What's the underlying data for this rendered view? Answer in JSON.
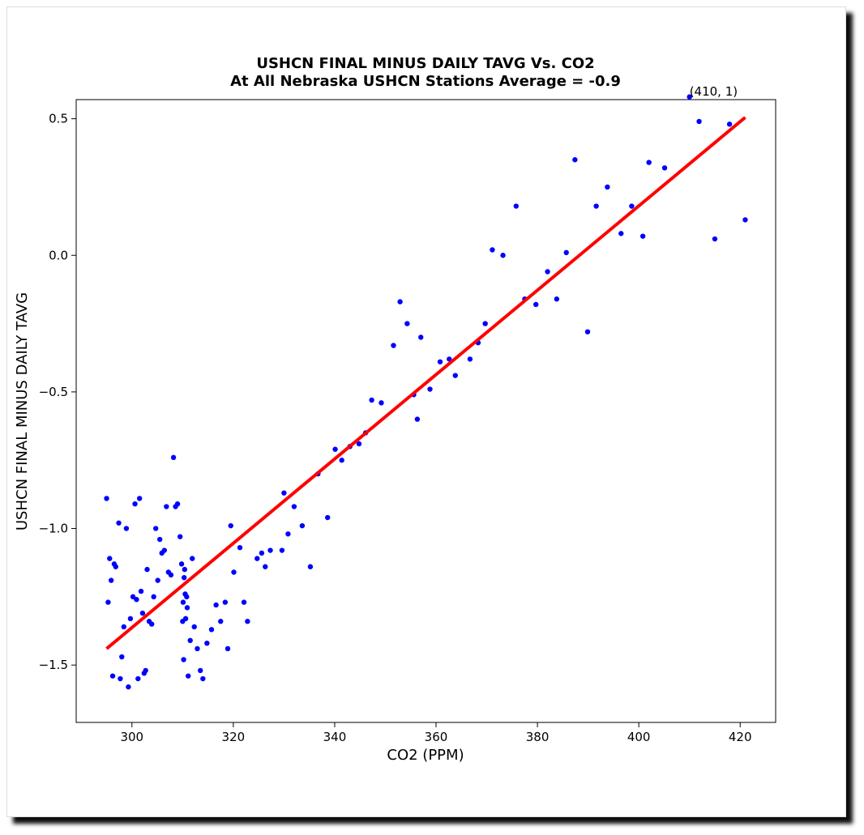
{
  "chart_data": {
    "type": "scatter",
    "title": "USHCN FINAL MINUS DAILY TAVG Vs. CO2",
    "subtitle": "At All Nebraska USHCN Stations Average = -0.9",
    "xlabel": "CO2 (PPM)",
    "ylabel": "USHCN FINAL MINUS DAILY TAVG",
    "xlim": [
      289,
      427
    ],
    "ylim": [
      -1.71,
      0.57
    ],
    "xticks": [
      300,
      320,
      340,
      360,
      380,
      400,
      420
    ],
    "xtick_labels": [
      "300",
      "320",
      "340",
      "360",
      "380",
      "400",
      "420"
    ],
    "yticks": [
      0.5,
      0.0,
      -0.5,
      -1.0,
      -1.5
    ],
    "ytick_labels": [
      "0.5",
      "0.0",
      "−0.5",
      "−1.0",
      "−1.5"
    ],
    "grid": false,
    "annotation": {
      "text": "(410, 1)",
      "x": 410,
      "y": 0.585
    },
    "trend_line": {
      "x": [
        295,
        421
      ],
      "y": [
        -1.44,
        0.505
      ],
      "color": "#ff0000"
    },
    "point_color": "#0000ff",
    "points": [
      [
        295.0,
        -0.89
      ],
      [
        295.3,
        -1.27
      ],
      [
        295.6,
        -1.11
      ],
      [
        295.9,
        -1.19
      ],
      [
        296.2,
        -1.54
      ],
      [
        296.5,
        -1.13
      ],
      [
        296.8,
        -1.14
      ],
      [
        297.4,
        -0.98
      ],
      [
        297.7,
        -1.55
      ],
      [
        298.0,
        -1.47
      ],
      [
        298.4,
        -1.36
      ],
      [
        298.9,
        -1.0
      ],
      [
        299.3,
        -1.58
      ],
      [
        299.7,
        -1.33
      ],
      [
        300.2,
        -1.25
      ],
      [
        300.6,
        -0.91
      ],
      [
        300.9,
        -1.26
      ],
      [
        301.2,
        -1.55
      ],
      [
        301.5,
        -0.89
      ],
      [
        301.8,
        -1.23
      ],
      [
        302.1,
        -1.31
      ],
      [
        302.4,
        -1.53
      ],
      [
        302.7,
        -1.52
      ],
      [
        303.0,
        -1.15
      ],
      [
        303.4,
        -1.34
      ],
      [
        303.9,
        -1.35
      ],
      [
        304.3,
        -1.25
      ],
      [
        304.7,
        -1.0
      ],
      [
        305.1,
        -1.19
      ],
      [
        305.5,
        -1.04
      ],
      [
        305.9,
        -1.09
      ],
      [
        306.4,
        -1.08
      ],
      [
        306.8,
        -0.92
      ],
      [
        307.2,
        -1.16
      ],
      [
        307.7,
        -1.17
      ],
      [
        308.2,
        -0.74
      ],
      [
        308.6,
        -0.92
      ],
      [
        309.0,
        -0.91
      ],
      [
        309.5,
        -1.03
      ],
      [
        309.8,
        -1.13
      ],
      [
        310.0,
        -1.34
      ],
      [
        310.1,
        -1.27
      ],
      [
        310.2,
        -1.48
      ],
      [
        310.3,
        -1.18
      ],
      [
        310.4,
        -1.15
      ],
      [
        310.5,
        -1.24
      ],
      [
        310.6,
        -1.33
      ],
      [
        310.8,
        -1.25
      ],
      [
        310.9,
        -1.29
      ],
      [
        311.1,
        -1.54
      ],
      [
        311.5,
        -1.41
      ],
      [
        311.9,
        -1.11
      ],
      [
        312.3,
        -1.36
      ],
      [
        312.9,
        -1.44
      ],
      [
        313.5,
        -1.52
      ],
      [
        314.0,
        -1.55
      ],
      [
        314.8,
        -1.42
      ],
      [
        315.7,
        -1.37
      ],
      [
        316.6,
        -1.28
      ],
      [
        317.5,
        -1.34
      ],
      [
        318.4,
        -1.27
      ],
      [
        318.9,
        -1.44
      ],
      [
        319.5,
        -0.99
      ],
      [
        320.1,
        -1.16
      ],
      [
        321.3,
        -1.07
      ],
      [
        322.1,
        -1.27
      ],
      [
        322.8,
        -1.34
      ],
      [
        324.7,
        -1.11
      ],
      [
        325.6,
        -1.09
      ],
      [
        326.3,
        -1.14
      ],
      [
        327.3,
        -1.08
      ],
      [
        329.6,
        -1.08
      ],
      [
        330.0,
        -0.87
      ],
      [
        330.8,
        -1.02
      ],
      [
        332.0,
        -0.92
      ],
      [
        333.6,
        -0.99
      ],
      [
        335.2,
        -1.14
      ],
      [
        336.7,
        -0.8
      ],
      [
        338.6,
        -0.96
      ],
      [
        340.1,
        -0.71
      ],
      [
        341.4,
        -0.75
      ],
      [
        343.0,
        -0.7
      ],
      [
        344.8,
        -0.69
      ],
      [
        346.1,
        -0.65
      ],
      [
        347.3,
        -0.53
      ],
      [
        349.2,
        -0.54
      ],
      [
        351.6,
        -0.33
      ],
      [
        352.9,
        -0.17
      ],
      [
        354.3,
        -0.25
      ],
      [
        355.6,
        -0.51
      ],
      [
        356.3,
        -0.6
      ],
      [
        357.0,
        -0.3
      ],
      [
        358.8,
        -0.49
      ],
      [
        360.8,
        -0.39
      ],
      [
        362.6,
        -0.38
      ],
      [
        363.8,
        -0.44
      ],
      [
        366.7,
        -0.38
      ],
      [
        368.3,
        -0.32
      ],
      [
        369.7,
        -0.25
      ],
      [
        371.1,
        0.02
      ],
      [
        373.2,
        0.0
      ],
      [
        375.8,
        0.18
      ],
      [
        377.5,
        -0.16
      ],
      [
        379.7,
        -0.18
      ],
      [
        382.0,
        -0.06
      ],
      [
        383.8,
        -0.16
      ],
      [
        385.7,
        0.01
      ],
      [
        387.4,
        0.35
      ],
      [
        389.9,
        -0.28
      ],
      [
        391.6,
        0.18
      ],
      [
        393.8,
        0.25
      ],
      [
        396.5,
        0.08
      ],
      [
        398.6,
        0.18
      ],
      [
        400.8,
        0.07
      ],
      [
        402.0,
        0.34
      ],
      [
        405.1,
        0.32
      ],
      [
        410.0,
        0.58
      ],
      [
        411.9,
        0.49
      ],
      [
        415.0,
        0.06
      ],
      [
        417.9,
        0.48
      ],
      [
        421.0,
        0.13
      ]
    ]
  }
}
